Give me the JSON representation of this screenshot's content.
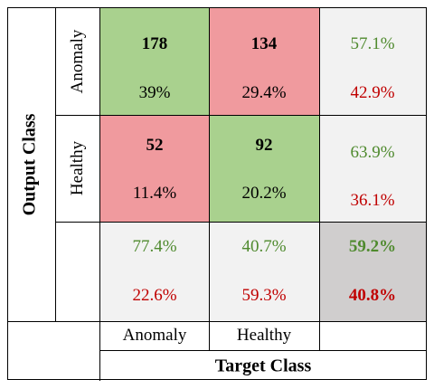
{
  "chart_data": {
    "type": "heatmap",
    "title": "",
    "ylabel": "Output Class",
    "xlabel": "Target Class",
    "row_labels": [
      "Anomaly",
      "Healthy"
    ],
    "col_labels": [
      "Anomaly",
      "Healthy"
    ],
    "matrix": [
      [
        {
          "count": "178",
          "percent": "39%"
        },
        {
          "count": "134",
          "percent": "29.4%"
        }
      ],
      [
        {
          "count": "52",
          "percent": "11.4%"
        },
        {
          "count": "92",
          "percent": "20.2%"
        }
      ]
    ],
    "row_summary": [
      {
        "correct": "57.1%",
        "incorrect": "42.9%"
      },
      {
        "correct": "63.9%",
        "incorrect": "36.1%"
      }
    ],
    "col_summary": [
      {
        "correct": "77.4%",
        "incorrect": "22.6%"
      },
      {
        "correct": "40.7%",
        "incorrect": "59.3%"
      }
    ],
    "overall": {
      "correct": "59.2%",
      "incorrect": "40.8%"
    }
  },
  "colors": {
    "correct_cell": "#a9d18e",
    "incorrect_cell": "#f09a9e",
    "summary_cell": "#f2f2f2",
    "overall_cell": "#d0cece",
    "green_text": "#4f8a2e",
    "red_text": "#c00000"
  }
}
